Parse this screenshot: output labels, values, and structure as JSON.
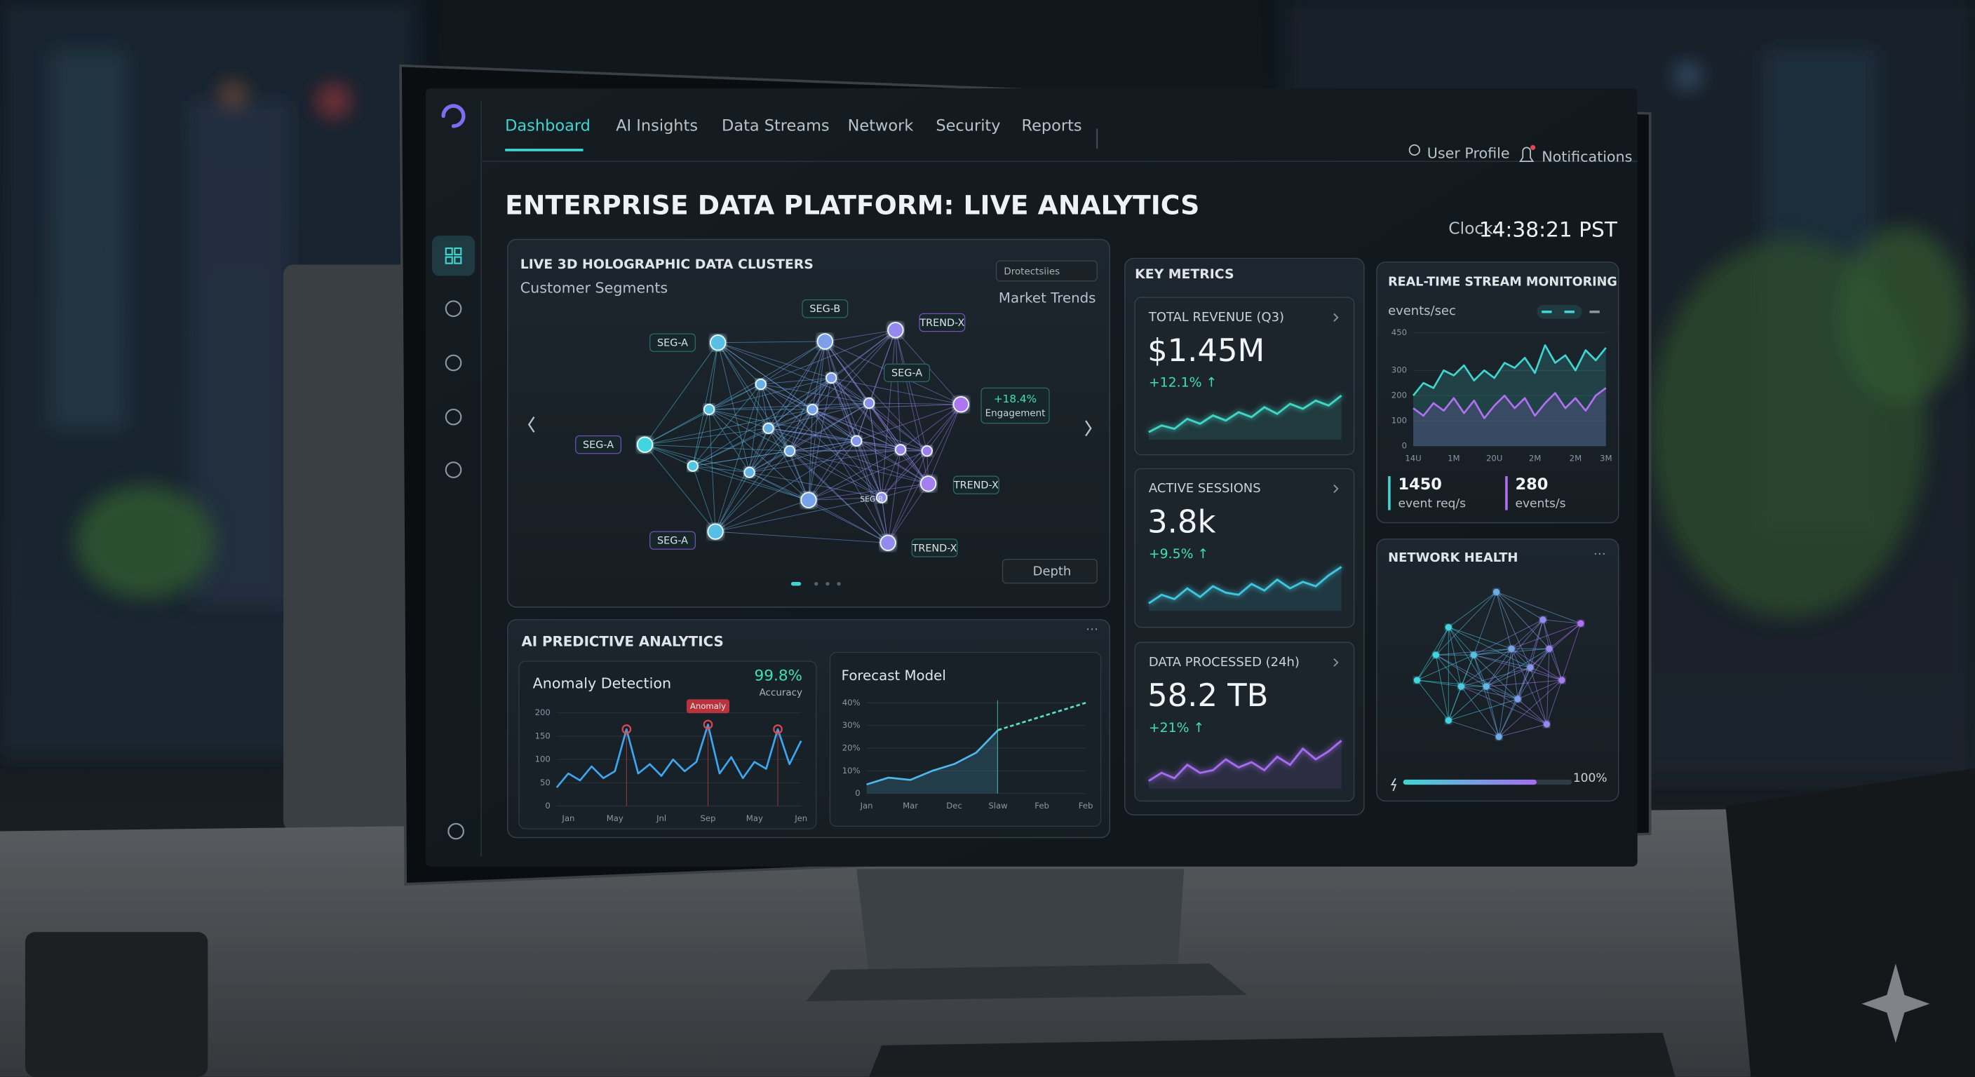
{
  "nav": {
    "tabs": [
      "Dashboard",
      "AI Insights",
      "Data Streams",
      "Network",
      "Security",
      "Reports"
    ],
    "user": "User Profile",
    "notifications": "Notifications"
  },
  "header": {
    "title": "ENTERPRISE DATA PLATFORM: LIVE ANALYTICS",
    "clock_label": "Clock:",
    "clock": "14:38:21 PST"
  },
  "clusters": {
    "title": "LIVE 3D HOLOGRAPHIC DATA CLUSTERS",
    "subtitle": "Customer Segments",
    "dropdown": "Drotectsiies",
    "side_label": "Market Trends",
    "node_labels": [
      "SEG-B",
      "TREND-X",
      "SEG-A",
      "SEG-A",
      "SEG-A",
      "TREND-X",
      "SEG-B",
      "SEG-A",
      "TREND-X"
    ],
    "callout": {
      "value": "+18.4%",
      "label": "Engagement"
    },
    "control": "Depth"
  },
  "predictive": {
    "title": "AI PREDICTIVE ANALYTICS",
    "accuracy": "99.8%",
    "accuracy_label": "Accuracy"
  },
  "metrics": {
    "title": "KEY METRICS",
    "cards": [
      {
        "label": "TOTAL REVENUE (Q3)",
        "value": "$1.45M",
        "change": "+12.1% ↑"
      },
      {
        "label": "ACTIVE SESSIONS",
        "value": "3.8k",
        "change": "+9.5% ↑"
      },
      {
        "label": "DATA PROCESSED (24h)",
        "value": "58.2 TB",
        "change": "+21% ↑"
      }
    ]
  },
  "stream": {
    "title": "REAL-TIME STREAM MONITORING",
    "unit": "events/sec",
    "stats": [
      {
        "value": "1450",
        "label": "event req/s"
      },
      {
        "value": "280",
        "label": "events/s"
      }
    ]
  },
  "network_health": {
    "title": "NETWORK HEALTH",
    "status": "100%"
  },
  "chart_data": [
    {
      "type": "line",
      "title": "Anomaly Detection",
      "categories": [
        null,
        "Jan",
        null,
        null,
        null,
        "May",
        null,
        null,
        null,
        "Jnl",
        null,
        null,
        null,
        "Sep",
        null,
        null,
        null,
        "May",
        null,
        null,
        null,
        "Jen"
      ],
      "series": [
        {
          "color": "#3ea6ee",
          "values": [
            40,
            70,
            55,
            85,
            60,
            75,
            165,
            70,
            90,
            65,
            100,
            75,
            95,
            175,
            70,
            105,
            60,
            95,
            80,
            165,
            90,
            140
          ]
        },
        {
          "name": "Anomaly",
          "color": "#e2474f",
          "mode": "markers",
          "values": [
            null,
            null,
            null,
            null,
            null,
            null,
            165,
            null,
            null,
            null,
            null,
            null,
            null,
            175,
            null,
            null,
            null,
            null,
            null,
            165,
            null,
            null
          ]
        }
      ],
      "ylim": [
        0,
        200
      ],
      "yticks": [
        0,
        50,
        100,
        150,
        200
      ],
      "grid": true
    },
    {
      "type": "line",
      "title": "Forecast Model",
      "categories": [
        "Jan",
        null,
        "Mar",
        null,
        "Dec",
        null,
        "Slaw",
        null,
        "Feb",
        null,
        "Feb"
      ],
      "series": [
        {
          "color": "#4fb8ea",
          "area": true,
          "values": [
            4,
            7,
            6,
            10,
            13,
            18,
            28,
            null,
            null,
            null,
            null
          ]
        },
        {
          "color": "#59e0c8",
          "dashed": true,
          "values": [
            null,
            null,
            null,
            null,
            null,
            null,
            28,
            31,
            34,
            37,
            40
          ]
        }
      ],
      "ylim": [
        0,
        40
      ],
      "yticks": [
        0,
        {
          "value": 10,
          "label": "10%"
        },
        {
          "value": 20,
          "label": "20%"
        },
        {
          "value": 30,
          "label": "30%"
        },
        {
          "value": 40,
          "label": "40%"
        }
      ],
      "grid": true
    },
    {
      "type": "line",
      "categories": [
        "14U",
        null,
        null,
        null,
        "1M",
        null,
        null,
        null,
        "20U",
        null,
        null,
        null,
        "2M",
        null,
        null,
        null,
        "2M",
        null,
        null,
        "3M"
      ],
      "series": [
        {
          "color": "#3fd6d0",
          "area": true,
          "values": [
            200,
            250,
            230,
            300,
            280,
            320,
            260,
            300,
            270,
            330,
            310,
            350,
            290,
            400,
            330,
            360,
            300,
            380,
            340,
            390
          ]
        },
        {
          "color": "#b071f0",
          "area": true,
          "values": [
            150,
            120,
            170,
            140,
            190,
            130,
            180,
            110,
            160,
            200,
            150,
            190,
            120,
            170,
            210,
            150,
            190,
            140,
            200,
            230
          ]
        }
      ],
      "ylim": [
        0,
        450
      ],
      "yticks": [
        0,
        100,
        200,
        300,
        450
      ],
      "grid": true
    },
    {
      "type": "sparkline",
      "color": "#3fd6c4",
      "values": [
        10,
        14,
        12,
        18,
        15,
        20,
        17,
        22,
        19,
        25,
        21,
        27,
        24,
        29,
        26,
        32
      ]
    },
    {
      "type": "sparkline",
      "color": "#3fc6e0",
      "values": [
        8,
        12,
        10,
        15,
        11,
        16,
        13,
        12,
        17,
        14,
        19,
        15,
        18,
        16,
        21,
        25
      ]
    },
    {
      "type": "sparkline",
      "color": "#a56cf0",
      "values": [
        9,
        12,
        10,
        15,
        12,
        13,
        17,
        14,
        16,
        13,
        18,
        15,
        21,
        17,
        20,
        24
      ]
    }
  ]
}
